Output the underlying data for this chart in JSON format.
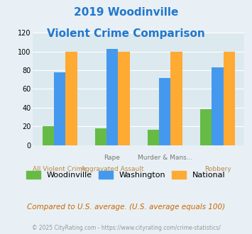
{
  "title_line1": "2019 Woodinville",
  "title_line2": "Violent Crime Comparison",
  "title_color": "#2277cc",
  "top_labels": [
    "",
    "Rape",
    "Murder & Mans...",
    ""
  ],
  "bottom_labels": [
    "All Violent Crime",
    "Aggravated Assault",
    "",
    "Robbery"
  ],
  "top_label_color": "#777777",
  "bottom_label_color": "#bb8844",
  "woodinville": [
    20,
    18,
    16,
    38
  ],
  "washington": [
    78,
    103,
    72,
    83
  ],
  "national": [
    100,
    100,
    100,
    100
  ],
  "woodinville_color": "#66bb44",
  "washington_color": "#4499ee",
  "national_color": "#ffaa33",
  "ylim": [
    0,
    120
  ],
  "yticks": [
    0,
    20,
    40,
    60,
    80,
    100,
    120
  ],
  "bg_color": "#e8f0f5",
  "plot_bg": "#dce9ee",
  "footer_text": "Compared to U.S. average. (U.S. average equals 100)",
  "footer_color": "#cc6600",
  "credit_text": "© 2025 CityRating.com - https://www.cityrating.com/crime-statistics/",
  "credit_color": "#999999",
  "legend_labels": [
    "Woodinville",
    "Washington",
    "National"
  ]
}
